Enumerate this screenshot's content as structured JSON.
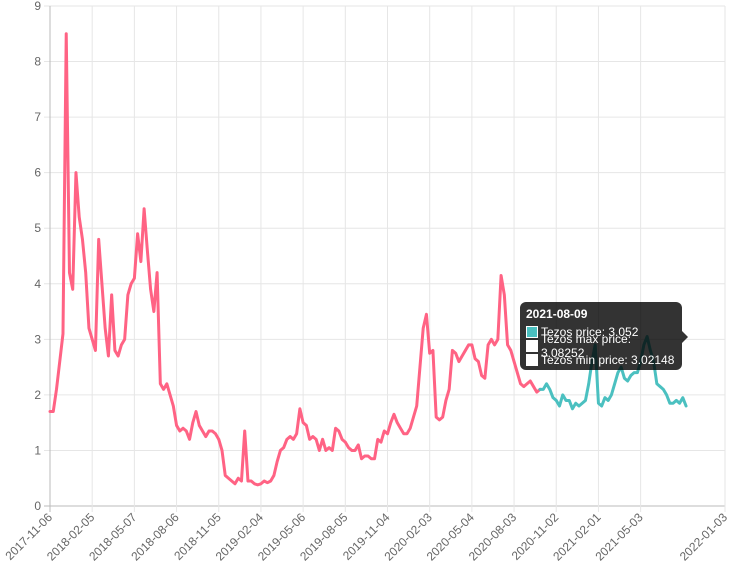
{
  "chart_data": {
    "type": "line",
    "title": "",
    "xlabel": "",
    "ylabel": "",
    "ylim": [
      0,
      9
    ],
    "yticks": [
      "0",
      "1",
      "2",
      "3",
      "4",
      "5",
      "6",
      "7",
      "8",
      "9"
    ],
    "xtick_labels": [
      "2017-11-06",
      "2018-02-05",
      "2018-05-07",
      "2018-08-06",
      "2018-11-05",
      "2019-02-04",
      "2019-05-06",
      "2019-08-05",
      "2019-11-04",
      "2020-02-03",
      "2020-05-04",
      "2020-08-03",
      "2020-11-02",
      "2021-02-01",
      "2021-05-03",
      "2022-01-03"
    ],
    "xtick_index": [
      0,
      13,
      26,
      39,
      52,
      65,
      78,
      91,
      104,
      117,
      130,
      143,
      156,
      169,
      182,
      208
    ],
    "series": [
      {
        "name": "Tezos price",
        "color": "#ff6384",
        "values": [
          1.7,
          1.7,
          2.1,
          2.6,
          3.1,
          8.5,
          4.2,
          3.9,
          6.0,
          5.2,
          4.8,
          4.2,
          3.2,
          3.0,
          2.8,
          4.8,
          4.0,
          3.2,
          2.7,
          3.8,
          2.8,
          2.7,
          2.9,
          3.0,
          3.8,
          4.0,
          4.1,
          4.9,
          4.4,
          5.35,
          4.6,
          3.9,
          3.5,
          4.2,
          2.2,
          2.1,
          2.2,
          2.0,
          1.8,
          1.45,
          1.35,
          1.4,
          1.35,
          1.2,
          1.5,
          1.7,
          1.45,
          1.35,
          1.25,
          1.35,
          1.35,
          1.3,
          1.2,
          1.0,
          0.55,
          0.5,
          0.45,
          0.4,
          0.5,
          0.45,
          1.35,
          0.45,
          0.45,
          0.4,
          0.38,
          0.4,
          0.45,
          0.42,
          0.45,
          0.55,
          0.8,
          1.0,
          1.05,
          1.2,
          1.25,
          1.2,
          1.3,
          1.75,
          1.5,
          1.45,
          1.2,
          1.25,
          1.2,
          1.0,
          1.2,
          1.0,
          1.05,
          1.0,
          1.4,
          1.35,
          1.2,
          1.15,
          1.05,
          1.0,
          1.0,
          1.1,
          0.85,
          0.9,
          0.9,
          0.85,
          0.85,
          1.2,
          1.15,
          1.35,
          1.3,
          1.5,
          1.65,
          1.5,
          1.4,
          1.3,
          1.3,
          1.4,
          1.6,
          1.8,
          2.5,
          3.2,
          3.45,
          2.75,
          2.8,
          1.6,
          1.55,
          1.6,
          1.9,
          2.1,
          2.8,
          2.75,
          2.6,
          2.7,
          2.8,
          2.9,
          2.9,
          2.65,
          2.6,
          2.35,
          2.3,
          2.9,
          3.0,
          2.9,
          3.0,
          4.15,
          3.8,
          2.9,
          2.8,
          2.6,
          2.4,
          2.2,
          2.15,
          2.2,
          2.25,
          2.15,
          2.05,
          2.1
        ],
        "tooltip_label": "Tezos price: 3.052"
      },
      {
        "name": "Tezos max price",
        "color": "#4bc0c0",
        "values": [
          2.1,
          2.1,
          2.2,
          2.1,
          1.95,
          1.9,
          1.8,
          2.0,
          1.9,
          1.9,
          1.75,
          1.85,
          1.8,
          1.85,
          1.9,
          2.2,
          2.6,
          2.9,
          1.85,
          1.8,
          1.95,
          1.9,
          2.0,
          2.2,
          2.4,
          2.5,
          2.3,
          2.25,
          2.35,
          2.4,
          2.4,
          2.6,
          2.9,
          3.05,
          2.8,
          2.6,
          2.2,
          2.15,
          2.1,
          2.0,
          1.85,
          1.85,
          1.9,
          1.85,
          1.95,
          1.8
        ],
        "tooltip_label": "Tezos max price: 3.08252"
      },
      {
        "name": "Tezos min price",
        "color": "#ffffff",
        "tooltip_label": "Tezos min price: 3.02148"
      }
    ],
    "tooltip": {
      "title": "2021-08-09",
      "highlight_index": 195
    },
    "grid": true,
    "legend": "none"
  }
}
